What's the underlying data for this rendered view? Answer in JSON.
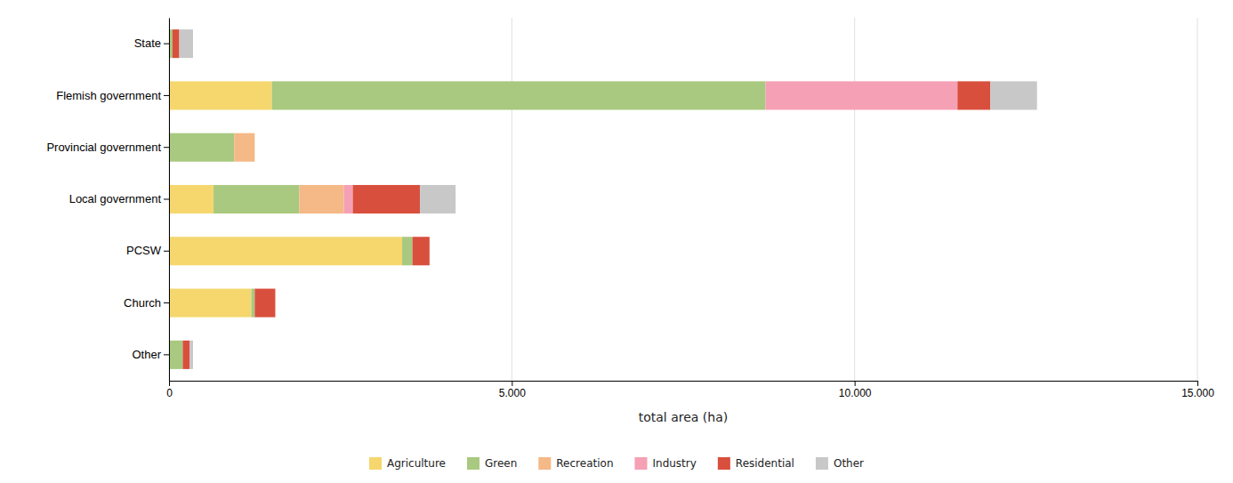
{
  "chart_data": {
    "type": "bar",
    "orientation": "horizontal",
    "stacked": true,
    "categories": [
      "Other",
      "Church",
      "PCSW",
      "Local government",
      "Provincial government",
      "Flemish government",
      "State"
    ],
    "series": [
      {
        "name": "Agriculture",
        "color": "#F5D76E",
        "values": [
          0,
          1200,
          3400,
          650,
          0,
          1500,
          0
        ]
      },
      {
        "name": "Green",
        "color": "#A8C97F",
        "values": [
          200,
          50,
          150,
          1250,
          950,
          7200,
          50
        ]
      },
      {
        "name": "Recreation",
        "color": "#F5B887",
        "values": [
          0,
          0,
          0,
          650,
          300,
          0,
          0
        ]
      },
      {
        "name": "Industry",
        "color": "#F5A0B5",
        "values": [
          0,
          0,
          0,
          130,
          0,
          2800,
          0
        ]
      },
      {
        "name": "Residential",
        "color": "#D94F3D",
        "values": [
          100,
          300,
          250,
          980,
          0,
          480,
          100
        ]
      },
      {
        "name": "Other",
        "color": "#C8C8C8",
        "values": [
          50,
          0,
          0,
          520,
          0,
          680,
          200
        ]
      }
    ],
    "xlabel": "total area (ha)",
    "xlim": [
      0,
      15000
    ],
    "xticks": [
      0,
      {
        "value": 5000,
        "label": "5.000"
      },
      {
        "value": 10000,
        "label": "10.000"
      },
      {
        "value": 15000,
        "label": "15.000"
      }
    ],
    "grid": true,
    "legend": "bottom"
  }
}
